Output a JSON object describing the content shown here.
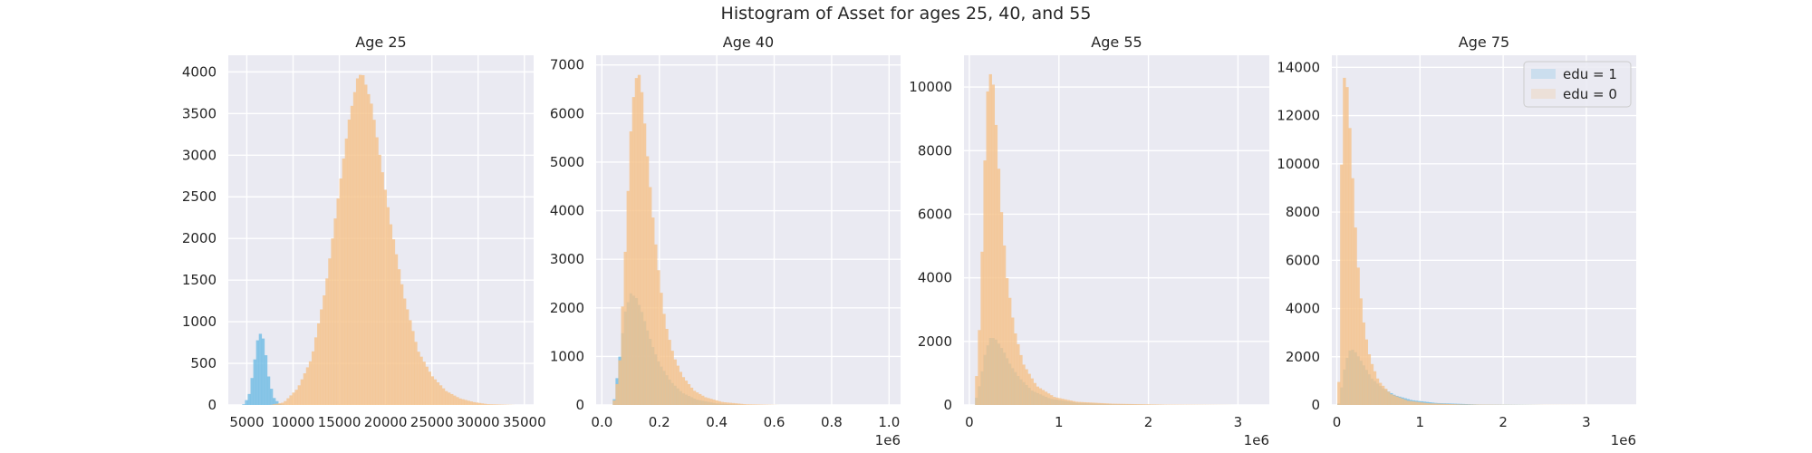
{
  "figure": {
    "title": "Histogram of Asset for ages 25, 40, and 55"
  },
  "colors": {
    "background": "#eaeaf2",
    "grid": "#ffffff",
    "text": "#262626",
    "edu1": "#6fbbe3",
    "edu0": "#f5c28a",
    "overlap": "#b3b08a"
  },
  "chart_data": [
    {
      "type": "histogram",
      "title": "Age 25",
      "xlim": [
        3000,
        36000
      ],
      "ylim": [
        0,
        4200
      ],
      "xticks": [
        5000,
        10000,
        15000,
        20000,
        25000,
        30000,
        35000
      ],
      "xtick_labels": [
        "5000",
        "10000",
        "15000",
        "20000",
        "25000",
        "30000",
        "35000"
      ],
      "yticks": [
        0,
        500,
        1000,
        1500,
        2000,
        2500,
        3000,
        3500,
        4000
      ],
      "ytick_labels": [
        "0",
        "500",
        "1000",
        "1500",
        "2000",
        "2500",
        "3000",
        "3500",
        "4000"
      ],
      "offset_text": "",
      "series": [
        {
          "name": "edu = 1",
          "x": [
            4600,
            5200,
            5700,
            6100,
            6400,
            6700,
            7000,
            7400,
            7900,
            8500,
            9000
          ],
          "values": [
            0,
            100,
            420,
            760,
            860,
            830,
            640,
            300,
            90,
            15,
            0
          ]
        },
        {
          "name": "edu = 0",
          "x": [
            7500,
            9000,
            10500,
            12000,
            13500,
            15000,
            16000,
            17000,
            17500,
            18500,
            19500,
            20500,
            22000,
            23500,
            25000,
            26500,
            28000,
            29500,
            31000,
            34000
          ],
          "values": [
            0,
            30,
            200,
            560,
            1400,
            2600,
            3400,
            3950,
            3980,
            3600,
            2900,
            2200,
            1300,
            650,
            350,
            170,
            80,
            35,
            10,
            0
          ]
        }
      ]
    },
    {
      "type": "histogram",
      "title": "Age 40",
      "xlim": [
        -20000,
        1040000
      ],
      "ylim": [
        0,
        7200
      ],
      "xticks": [
        0,
        200000,
        400000,
        600000,
        800000,
        1000000
      ],
      "xtick_labels": [
        "0.0",
        "0.2",
        "0.4",
        "0.6",
        "0.8",
        "1.0"
      ],
      "yticks": [
        0,
        1000,
        2000,
        3000,
        4000,
        5000,
        6000,
        7000
      ],
      "ytick_labels": [
        "0",
        "1000",
        "2000",
        "3000",
        "4000",
        "5000",
        "6000",
        "7000"
      ],
      "offset_text": "1e6",
      "series": [
        {
          "name": "edu = 1",
          "x": [
            40000,
            60000,
            80000,
            100000,
            120000,
            140000,
            160000,
            180000,
            200000,
            240000,
            280000,
            330000,
            400000,
            500000
          ],
          "values": [
            0,
            900,
            1900,
            2300,
            2200,
            1900,
            1500,
            1150,
            850,
            480,
            250,
            110,
            30,
            0
          ]
        },
        {
          "name": "edu = 0",
          "x": [
            40000,
            60000,
            80000,
            100000,
            115000,
            130000,
            140000,
            160000,
            180000,
            200000,
            220000,
            250000,
            280000,
            320000,
            360000,
            420000,
            500000,
            620000
          ],
          "values": [
            0,
            700,
            3000,
            5600,
            6700,
            6800,
            6400,
            5000,
            3700,
            2600,
            1700,
            1000,
            600,
            300,
            160,
            60,
            15,
            0
          ]
        }
      ]
    },
    {
      "type": "histogram",
      "title": "Age 55",
      "xlim": [
        -60000,
        3350000
      ],
      "ylim": [
        0,
        11000
      ],
      "xticks": [
        0,
        1000000,
        2000000,
        3000000
      ],
      "xtick_labels": [
        "0",
        "1",
        "2",
        "3"
      ],
      "yticks": [
        0,
        2000,
        4000,
        6000,
        8000,
        10000
      ],
      "ytick_labels": [
        "0",
        "2000",
        "4000",
        "6000",
        "8000",
        "10000"
      ],
      "offset_text": "1e6",
      "series": [
        {
          "name": "edu = 1",
          "x": [
            60000,
            120000,
            180000,
            240000,
            300000,
            380000,
            460000,
            560000,
            700000,
            900000,
            1200000,
            1600000,
            2200000
          ],
          "values": [
            0,
            700,
            1700,
            2150,
            2050,
            1700,
            1250,
            850,
            450,
            200,
            70,
            20,
            0
          ]
        },
        {
          "name": "edu = 0",
          "x": [
            60000,
            120000,
            170000,
            200000,
            240000,
            270000,
            310000,
            360000,
            420000,
            500000,
            600000,
            750000,
            950000,
            1200000,
            1600000,
            2200000,
            3000000
          ],
          "values": [
            0,
            2800,
            7500,
            9800,
            10500,
            10000,
            8200,
            6000,
            4000,
            2400,
            1300,
            600,
            250,
            100,
            40,
            10,
            0
          ]
        }
      ]
    },
    {
      "type": "histogram",
      "title": "Age 75",
      "xlim": [
        -60000,
        3600000
      ],
      "ylim": [
        0,
        14500
      ],
      "xticks": [
        0,
        1000000,
        2000000,
        3000000
      ],
      "xtick_labels": [
        "0",
        "1",
        "2",
        "3"
      ],
      "yticks": [
        0,
        2000,
        4000,
        6000,
        8000,
        10000,
        12000,
        14000
      ],
      "ytick_labels": [
        "0",
        "2000",
        "4000",
        "6000",
        "8000",
        "10000",
        "12000",
        "14000"
      ],
      "offset_text": "1e6",
      "legend": {
        "location": "upper right",
        "entries": [
          "edu = 1",
          "edu = 0"
        ]
      },
      "series": [
        {
          "name": "edu = 1",
          "x": [
            20000,
            60000,
            100000,
            150000,
            200000,
            260000,
            330000,
            420000,
            550000,
            700000,
            900000,
            1200000,
            1700000,
            2500000
          ],
          "values": [
            0,
            800,
            1700,
            2250,
            2300,
            2000,
            1600,
            1100,
            700,
            400,
            200,
            80,
            20,
            0
          ]
        },
        {
          "name": "edu = 0",
          "x": [
            20000,
            50000,
            80000,
            110000,
            140000,
            180000,
            220000,
            270000,
            330000,
            400000,
            500000,
            650000,
            850000,
            1100000,
            1500000,
            2200000,
            3200000
          ],
          "values": [
            0,
            9000,
            13500,
            13700,
            12500,
            10000,
            7500,
            5000,
            3200,
            1900,
            1000,
            450,
            180,
            70,
            20,
            5,
            0
          ]
        }
      ]
    }
  ]
}
